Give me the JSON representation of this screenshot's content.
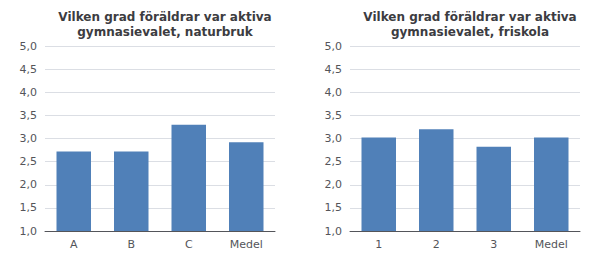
{
  "chart_data": [
    {
      "type": "bar",
      "title": "Vilken grad föräldrar var aktiva\ngymnasievalet, naturbruk",
      "categories": [
        "A",
        "B",
        "C",
        "Medel"
      ],
      "values": [
        2.72,
        2.72,
        3.3,
        2.92
      ],
      "color": "#5080b8",
      "ylim": [
        1.0,
        5.0
      ],
      "yticks": [
        {
          "value": 1.0,
          "label": "1,0"
        },
        {
          "value": 1.5,
          "label": "1,5"
        },
        {
          "value": 2.0,
          "label": "2,0"
        },
        {
          "value": 2.5,
          "label": "2,5"
        },
        {
          "value": 3.0,
          "label": "3,0"
        },
        {
          "value": 3.5,
          "label": "3,5"
        },
        {
          "value": 4.0,
          "label": "4,0"
        },
        {
          "value": 4.5,
          "label": "4,5"
        },
        {
          "value": 5.0,
          "label": "5,0"
        }
      ],
      "grid": true
    },
    {
      "type": "bar",
      "title": "Vilken grad föräldrar var aktiva\ngymnasievalet, friskola",
      "categories": [
        "1",
        "2",
        "3",
        "Medel"
      ],
      "values": [
        3.02,
        3.2,
        2.82,
        3.02
      ],
      "color": "#5080b8",
      "ylim": [
        1.0,
        5.0
      ],
      "yticks": [
        {
          "value": 1.0,
          "label": "1,0"
        },
        {
          "value": 1.5,
          "label": "1,5"
        },
        {
          "value": 2.0,
          "label": "2,0"
        },
        {
          "value": 2.5,
          "label": "2,5"
        },
        {
          "value": 3.0,
          "label": "3,0"
        },
        {
          "value": 3.5,
          "label": "3,5"
        },
        {
          "value": 4.0,
          "label": "4,0"
        },
        {
          "value": 4.5,
          "label": "4,5"
        },
        {
          "value": 5.0,
          "label": "5,0"
        }
      ],
      "grid": true
    }
  ]
}
